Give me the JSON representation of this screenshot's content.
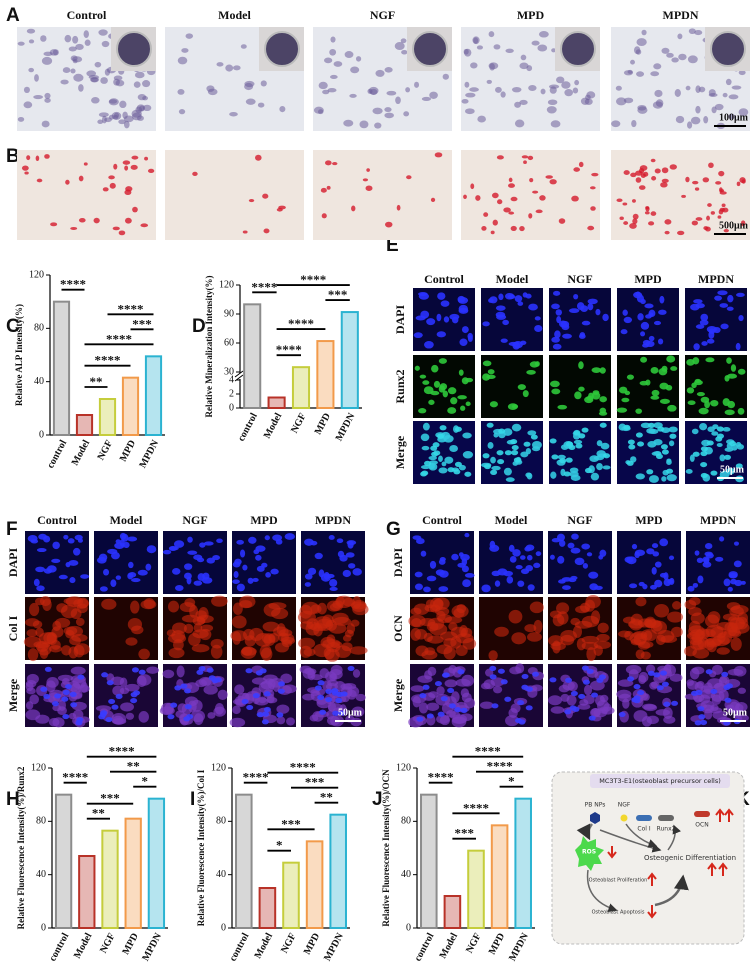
{
  "figure": {
    "panel_letters": [
      "A",
      "B",
      "C",
      "D",
      "E",
      "F",
      "G",
      "H",
      "I",
      "J",
      "K"
    ],
    "A": {
      "columns": [
        "Control",
        "Model",
        "NGF",
        "MPD",
        "MPDN"
      ],
      "scale_bar": "100μm"
    },
    "B": {
      "scale_bar": "500μm"
    },
    "E": {
      "columns": [
        "Control",
        "Model",
        "NGF",
        "MPD",
        "MPDN"
      ],
      "rows": [
        "DAPI",
        "Runx2",
        "Merge"
      ],
      "scale_bar": "50μm"
    },
    "F": {
      "columns": [
        "Control",
        "Model",
        "NGF",
        "MPD",
        "MPDN"
      ],
      "rows": [
        "DAPI",
        "Col I",
        "Merge"
      ],
      "scale_bar": "50μm"
    },
    "G": {
      "columns": [
        "Control",
        "Model",
        "NGF",
        "MPD",
        "MPDN"
      ],
      "rows": [
        "DAPI",
        "OCN",
        "Merge"
      ],
      "scale_bar": "50μm"
    },
    "K": {
      "title": "MC3T3-E1(osteoblast precursor cells)",
      "pb_nps": "PB NPs",
      "ngf": "NGF",
      "col1": "Col I",
      "runx2": "Runx2",
      "ocn": "OCN",
      "ros": "ROS",
      "differentiation": "Osteogenic Differentiation",
      "proliferation": "Osteoblast Proliferation",
      "apoptosis": "Osteoblast Apoptosis"
    }
  },
  "chart_data": [
    {
      "type": "bar",
      "ylabel": "Relative ALP Intensity(%)",
      "categories": [
        "control",
        "Model",
        "NGF",
        "MPD",
        "MPDN"
      ],
      "values": [
        100,
        15,
        27,
        43,
        59
      ],
      "colors": [
        "#8c8c8c",
        "#b83228",
        "#c5cd3c",
        "#f29a4a",
        "#2bb3d1"
      ],
      "ylim": [
        0,
        120
      ],
      "yticks": [
        0,
        40,
        80,
        120
      ],
      "comparisons": [
        {
          "label": "****",
          "pair": [
            2,
            4
          ]
        },
        {
          "label": "***",
          "pair": [
            3,
            4
          ]
        },
        {
          "label": "****",
          "pair": [
            1,
            4
          ]
        },
        {
          "label": "****",
          "pair": [
            1,
            3
          ]
        },
        {
          "label": "**",
          "pair": [
            1,
            2
          ]
        },
        {
          "label": "****",
          "pair": [
            0,
            1
          ]
        }
      ]
    },
    {
      "type": "bar",
      "ylabel": "Relative  Mineralization Intensity(%)",
      "categories": [
        "control",
        "Model",
        "NGF",
        "MPD",
        "MPDN"
      ],
      "values": [
        100,
        1.5,
        35,
        62,
        92
      ],
      "colors": [
        "#8c8c8c",
        "#b83228",
        "#c5cd3c",
        "#f29a4a",
        "#2bb3d1"
      ],
      "ylim": [
        0,
        120
      ],
      "ybreak": [
        4,
        30
      ],
      "yticks": [
        0,
        2,
        4,
        30,
        60,
        90,
        120
      ],
      "comparisons": [
        {
          "label": "****",
          "pair": [
            1,
            4
          ]
        },
        {
          "label": "****",
          "pair": [
            0,
            1
          ]
        },
        {
          "label": "***",
          "pair": [
            3,
            4
          ]
        },
        {
          "label": "****",
          "pair": [
            1,
            3
          ]
        },
        {
          "label": "****",
          "pair": [
            1,
            2
          ]
        }
      ]
    },
    {
      "type": "bar",
      "ylabel": "Relative Fluorescence Intensity(%)/Runx2",
      "categories": [
        "control",
        "Model",
        "NGF",
        "MPD",
        "MPDN"
      ],
      "values": [
        100,
        54,
        73,
        82,
        97
      ],
      "colors": [
        "#8c8c8c",
        "#b83228",
        "#c5cd3c",
        "#f29a4a",
        "#2bb3d1"
      ],
      "ylim": [
        0,
        120
      ],
      "yticks": [
        0,
        40,
        80,
        120
      ],
      "comparisons": [
        {
          "label": "****",
          "pair": [
            1,
            4
          ]
        },
        {
          "label": "**",
          "pair": [
            2,
            4
          ]
        },
        {
          "label": "*",
          "pair": [
            3,
            4
          ]
        },
        {
          "label": "***",
          "pair": [
            1,
            3
          ]
        },
        {
          "label": "**",
          "pair": [
            1,
            2
          ]
        },
        {
          "label": "****",
          "pair": [
            0,
            1
          ]
        }
      ]
    },
    {
      "type": "bar",
      "ylabel": "Relative Fluorescence Intensity(%)/Col I",
      "categories": [
        "control",
        "Model",
        "NGF",
        "MPD",
        "MPDN"
      ],
      "values": [
        100,
        30,
        49,
        65,
        85
      ],
      "colors": [
        "#8c8c8c",
        "#b83228",
        "#c5cd3c",
        "#f29a4a",
        "#2bb3d1"
      ],
      "ylim": [
        0,
        120
      ],
      "yticks": [
        0,
        40,
        80,
        120
      ],
      "comparisons": [
        {
          "label": "****",
          "pair": [
            1,
            4
          ]
        },
        {
          "label": "***",
          "pair": [
            2,
            4
          ]
        },
        {
          "label": "**",
          "pair": [
            3,
            4
          ]
        },
        {
          "label": "***",
          "pair": [
            1,
            3
          ]
        },
        {
          "label": "*",
          "pair": [
            1,
            2
          ]
        },
        {
          "label": "****",
          "pair": [
            0,
            1
          ]
        }
      ]
    },
    {
      "type": "bar",
      "ylabel": "Relative Fluorescence Intensity(%)/OCN",
      "categories": [
        "control",
        "Model",
        "NGF",
        "MPD",
        "MPDN"
      ],
      "values": [
        100,
        24,
        58,
        77,
        97
      ],
      "colors": [
        "#8c8c8c",
        "#b83228",
        "#c5cd3c",
        "#f29a4a",
        "#2bb3d1"
      ],
      "ylim": [
        0,
        120
      ],
      "yticks": [
        0,
        40,
        80,
        120
      ],
      "comparisons": [
        {
          "label": "****",
          "pair": [
            1,
            4
          ]
        },
        {
          "label": "****",
          "pair": [
            2,
            4
          ]
        },
        {
          "label": "*",
          "pair": [
            3,
            4
          ]
        },
        {
          "label": "****",
          "pair": [
            1,
            3
          ]
        },
        {
          "label": "***",
          "pair": [
            1,
            2
          ]
        },
        {
          "label": "****",
          "pair": [
            0,
            1
          ]
        }
      ]
    }
  ]
}
